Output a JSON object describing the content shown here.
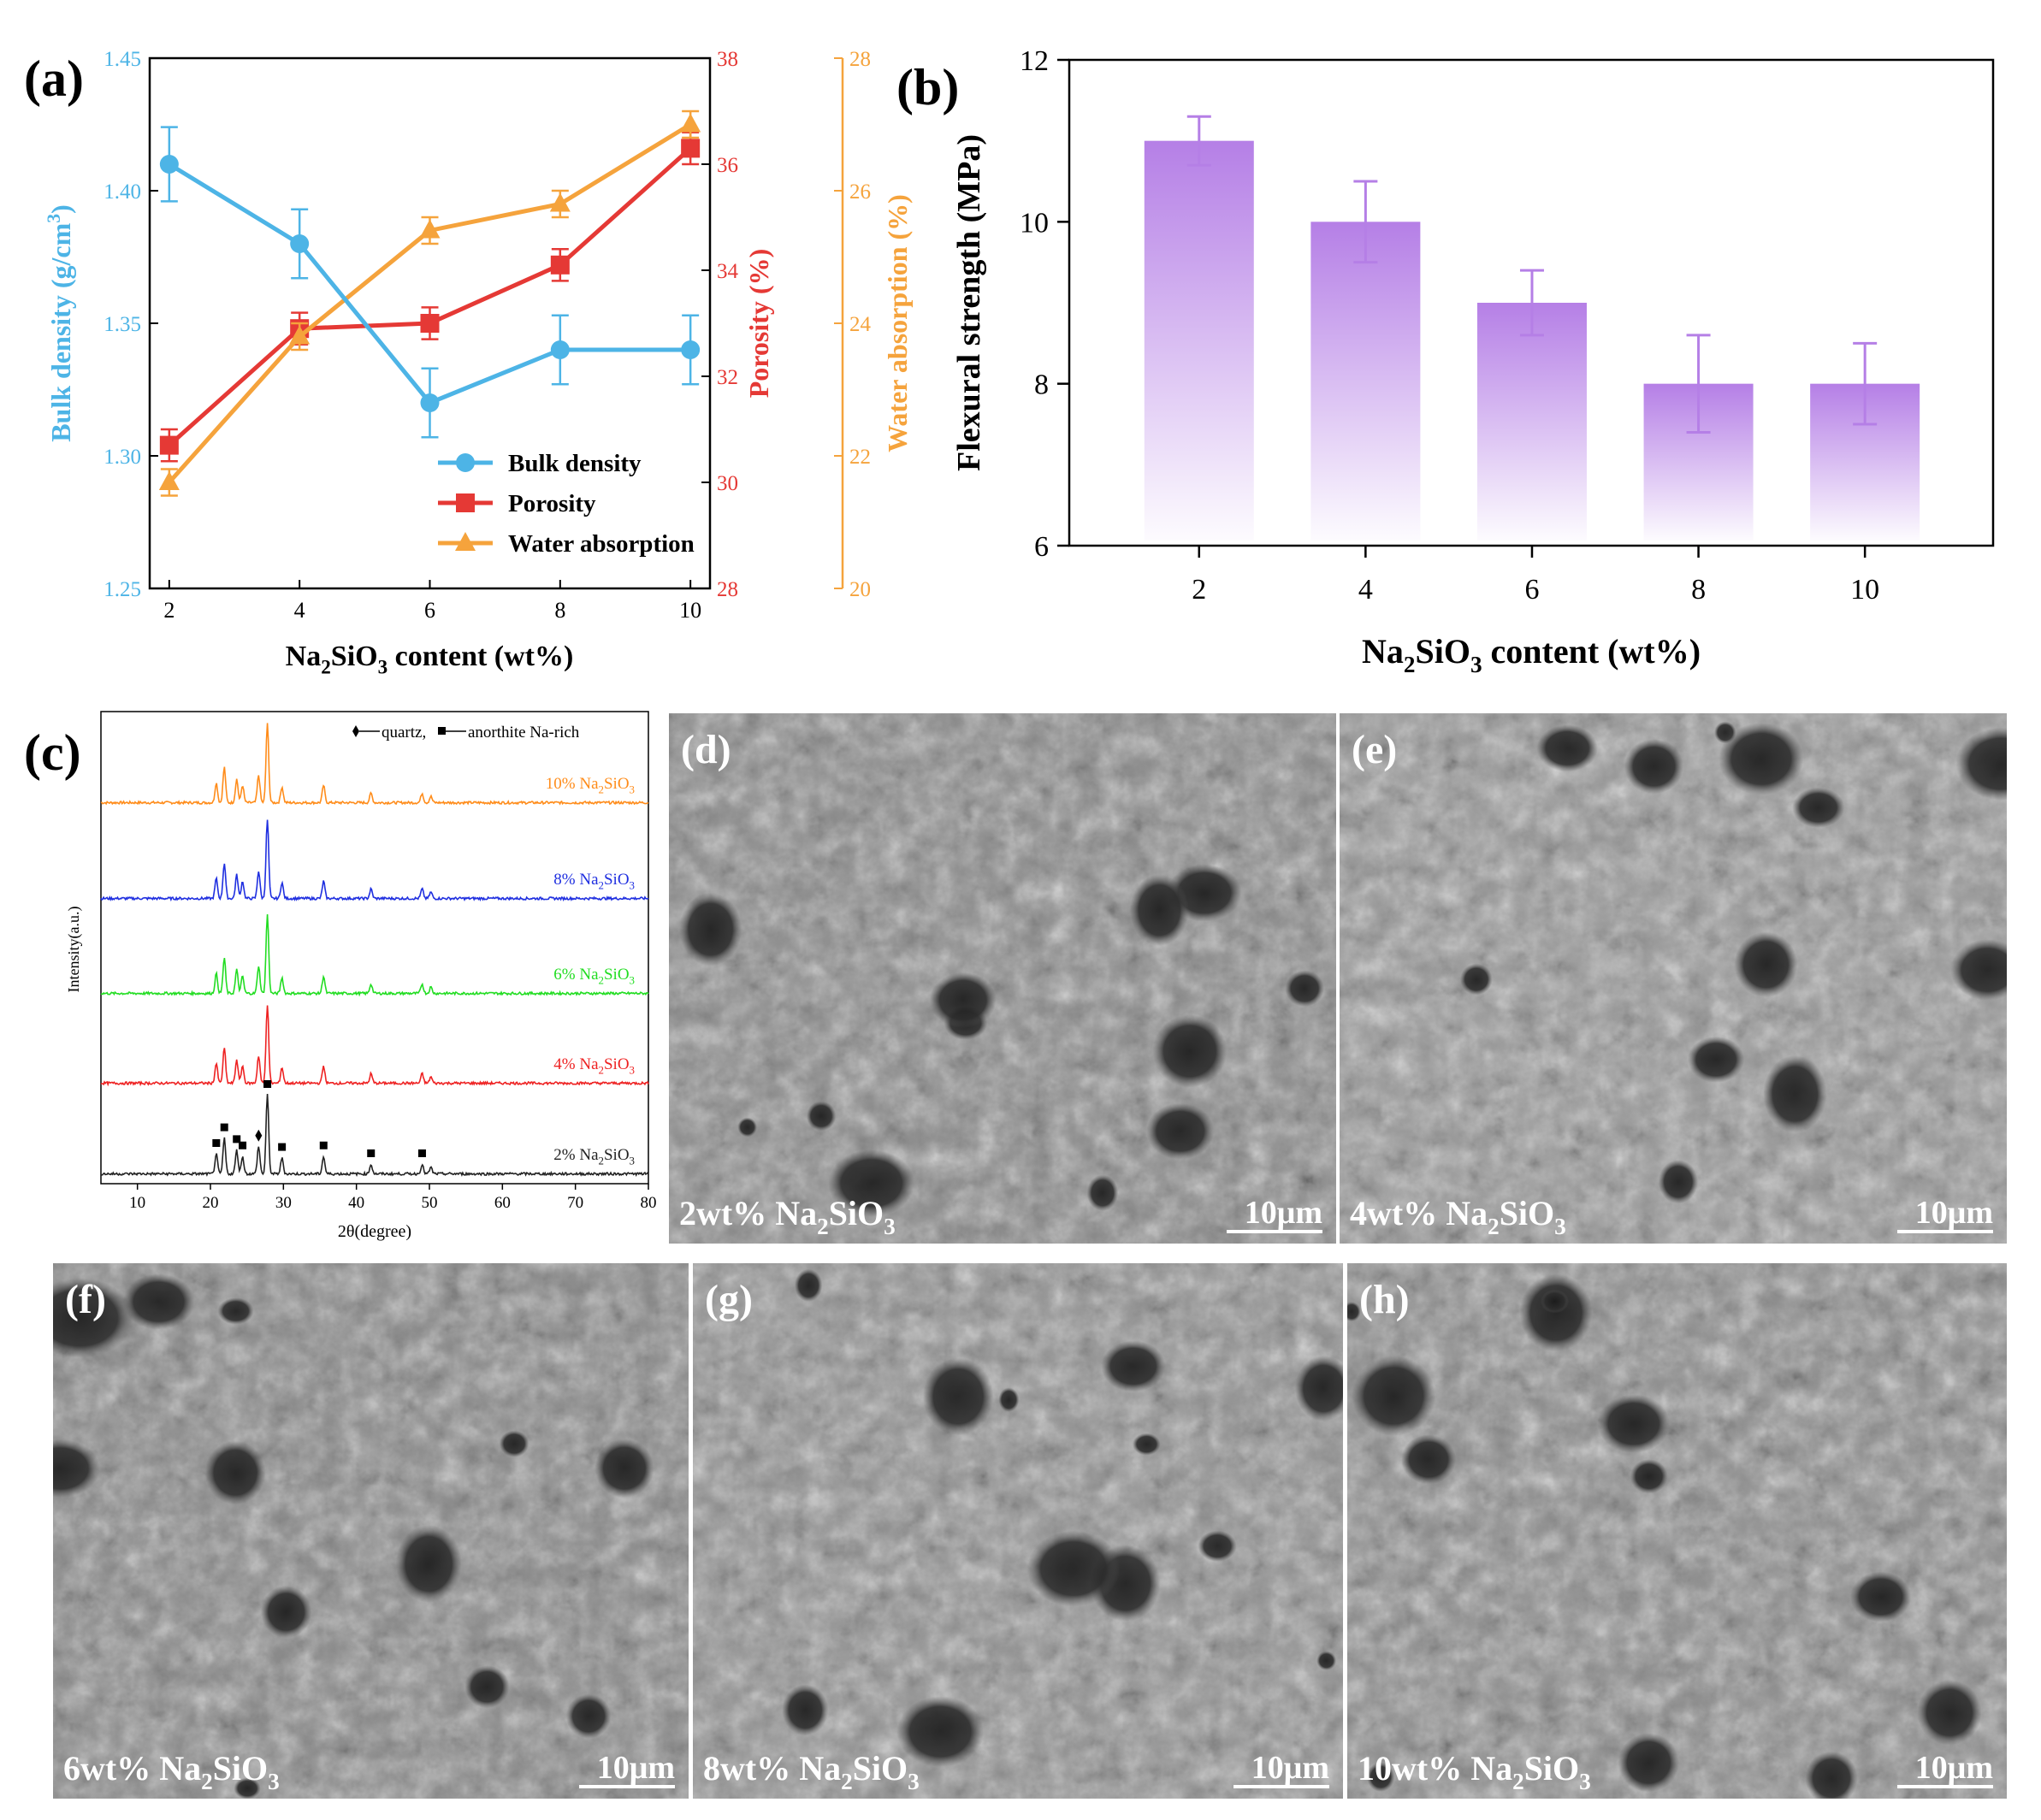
{
  "chart_data": [
    {
      "panel": "(a)",
      "type": "line",
      "xlabel": "Na2SiO3 content (wt%)",
      "x": [
        2,
        4,
        6,
        8,
        10
      ],
      "xticks": [
        "2",
        "4",
        "6",
        "8",
        "10"
      ],
      "axes": [
        {
          "id": "bd",
          "label": "Bulk density (g/cm3)",
          "ylim": [
            1.25,
            1.45
          ],
          "ticks": [
            "1.25",
            "1.30",
            "1.35",
            "1.40",
            "1.45"
          ],
          "color": "#4db4e6"
        },
        {
          "id": "po",
          "label": "Porosity (%)",
          "ylim": [
            28,
            38
          ],
          "ticks": [
            "28",
            "30",
            "32",
            "34",
            "36",
            "38"
          ],
          "color": "#e53935"
        },
        {
          "id": "wa",
          "label": "Water absorption (%)",
          "ylim": [
            20,
            28
          ],
          "ticks": [
            "20",
            "22",
            "24",
            "26",
            "28"
          ],
          "color": "#f5a33c"
        }
      ],
      "series": [
        {
          "name": "Bulk density",
          "axis": "bd",
          "marker": "circle",
          "values": [
            1.41,
            1.38,
            1.32,
            1.34,
            1.34
          ],
          "errors": [
            0.014,
            0.013,
            0.013,
            0.013,
            0.013
          ]
        },
        {
          "name": "Porosity",
          "axis": "po",
          "marker": "square",
          "values": [
            30.7,
            32.9,
            33.0,
            34.1,
            36.3
          ],
          "errors": [
            0.3,
            0.3,
            0.3,
            0.3,
            0.3
          ]
        },
        {
          "name": "Water absorption",
          "axis": "wa",
          "marker": "triangle",
          "values": [
            21.6,
            23.8,
            25.4,
            25.8,
            27.0
          ],
          "errors": [
            0.2,
            0.2,
            0.2,
            0.2,
            0.2
          ]
        }
      ],
      "legend": "lower-right"
    },
    {
      "panel": "(b)",
      "type": "bar",
      "xlabel": "Na2SiO3 content (wt%)",
      "ylabel": "Flexural strength (MPa)",
      "categories": [
        "2",
        "4",
        "6",
        "8",
        "10"
      ],
      "values": [
        11.0,
        10.0,
        9.0,
        8.0,
        8.0
      ],
      "errors": [
        0.3,
        0.5,
        0.4,
        0.6,
        0.5
      ],
      "ylim": [
        6,
        12
      ],
      "yticks": [
        "6",
        "8",
        "10",
        "12"
      ],
      "color": "#b57fe6"
    },
    {
      "panel": "(c)",
      "type": "line",
      "xlabel": "2θ(degree)",
      "ylabel": "Intensity(a.u.)",
      "xlim": [
        5,
        80
      ],
      "xticks": [
        "10",
        "20",
        "30",
        "40",
        "50",
        "60",
        "70",
        "80"
      ],
      "legend_text": {
        "quartz": "quartz,",
        "anorthite": "anorthite Na-rich"
      },
      "peaks_2theta": [
        20.8,
        21.9,
        23.6,
        24.4,
        26.6,
        27.8,
        29.8,
        35.5,
        42.0,
        49.0,
        50.2
      ],
      "peak_heights": [
        0.25,
        0.45,
        0.3,
        0.22,
        0.35,
        1.0,
        0.2,
        0.22,
        0.12,
        0.12,
        0.08
      ],
      "series": [
        {
          "name": "10% Na2SiO3",
          "color": "#ff8c1a"
        },
        {
          "name": "8% Na2SiO3",
          "color": "#1f2fe0"
        },
        {
          "name": "6% Na2SiO3",
          "color": "#22dd22"
        },
        {
          "name": "4% Na2SiO3",
          "color": "#ee2222"
        },
        {
          "name": "2% Na2SiO3",
          "color": "#222222"
        }
      ]
    }
  ],
  "sem_panels": [
    {
      "letter": "(d)",
      "caption": "2wt% Na2SiO3",
      "scale": "10μm"
    },
    {
      "letter": "(e)",
      "caption": "4wt% Na2SiO3",
      "scale": "10μm"
    },
    {
      "letter": "(f)",
      "caption": "6wt% Na2SiO3",
      "scale": "10μm"
    },
    {
      "letter": "(g)",
      "caption": "8wt% Na2SiO3",
      "scale": "10μm"
    },
    {
      "letter": "(h)",
      "caption": "10wt% Na2SiO3",
      "scale": "10μm"
    }
  ]
}
